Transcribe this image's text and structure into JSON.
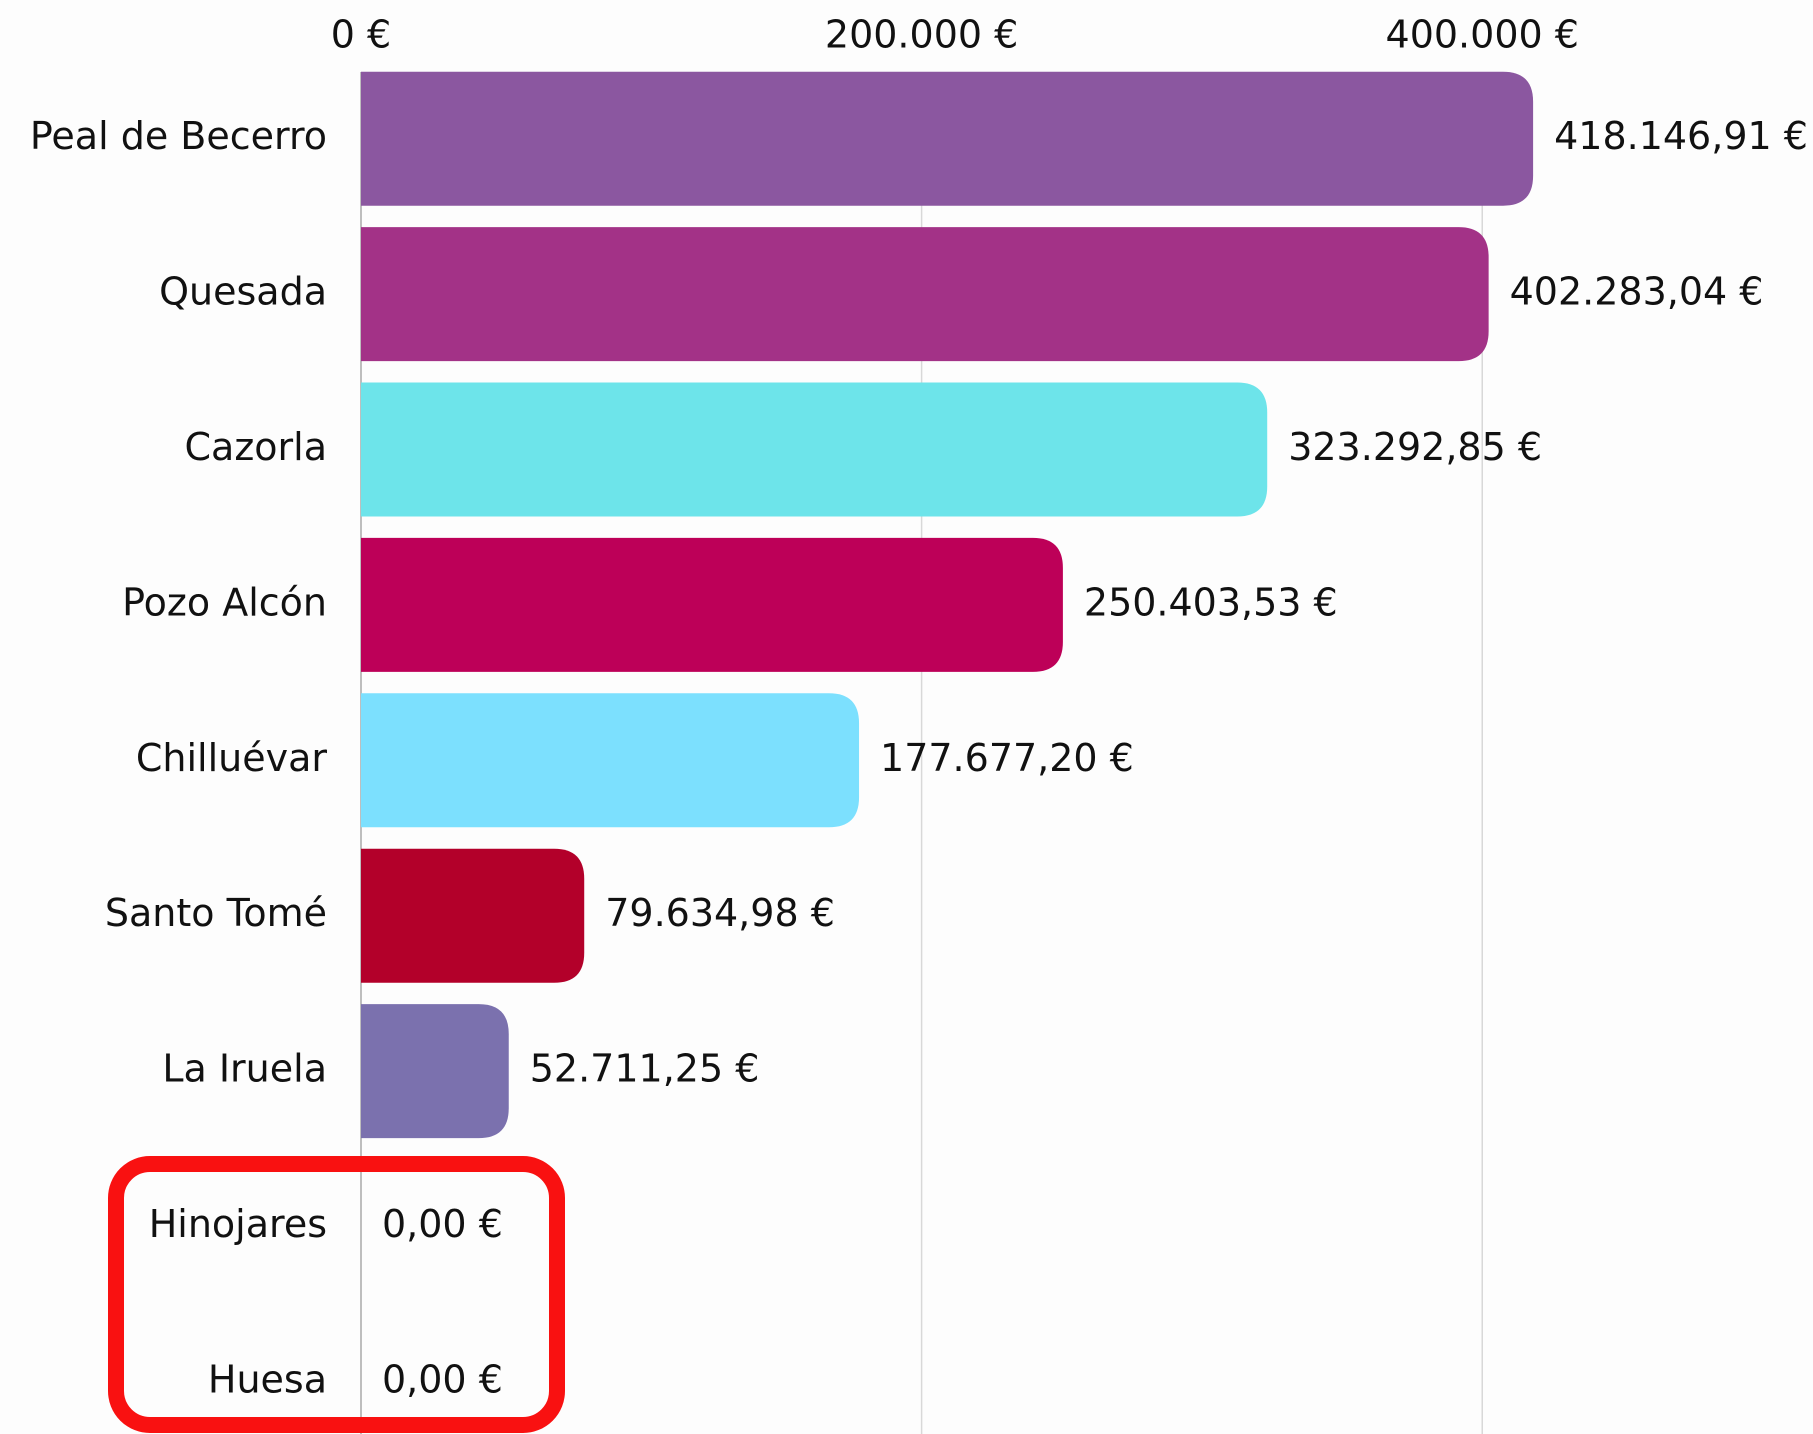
{
  "chart_data": {
    "type": "bar",
    "orientation": "horizontal",
    "categories": [
      "Peal de Becerro",
      "Quesada",
      "Cazorla",
      "Pozo Alcón",
      "Chilluévar",
      "Santo Tomé",
      "La Iruela",
      "Hinojares",
      "Huesa"
    ],
    "values": [
      418146.91,
      402283.04,
      323292.85,
      250403.53,
      177677.2,
      79634.98,
      52711.25,
      0,
      0
    ],
    "value_labels": [
      "418.146,91 €",
      "402.283,04 €",
      "323.292,85 €",
      "250.403,53 €",
      "177.677,20 €",
      "79.634,98 €",
      "52.711,25 €",
      "0,00 €",
      "0,00 €"
    ],
    "colors": [
      "#8b57a0",
      "#a33287",
      "#6de4ea",
      "#bd0058",
      "#7ce0fe",
      "#b3002a",
      "#7b71ae",
      "#7b71ae",
      "#7b71ae"
    ],
    "xlim": [
      0,
      518000
    ],
    "xticks": [
      {
        "value": 0,
        "label": "0 €"
      },
      {
        "value": 200000,
        "label": "200.000 €"
      },
      {
        "value": 400000,
        "label": "400.000 €"
      }
    ],
    "grid": true
  }
}
